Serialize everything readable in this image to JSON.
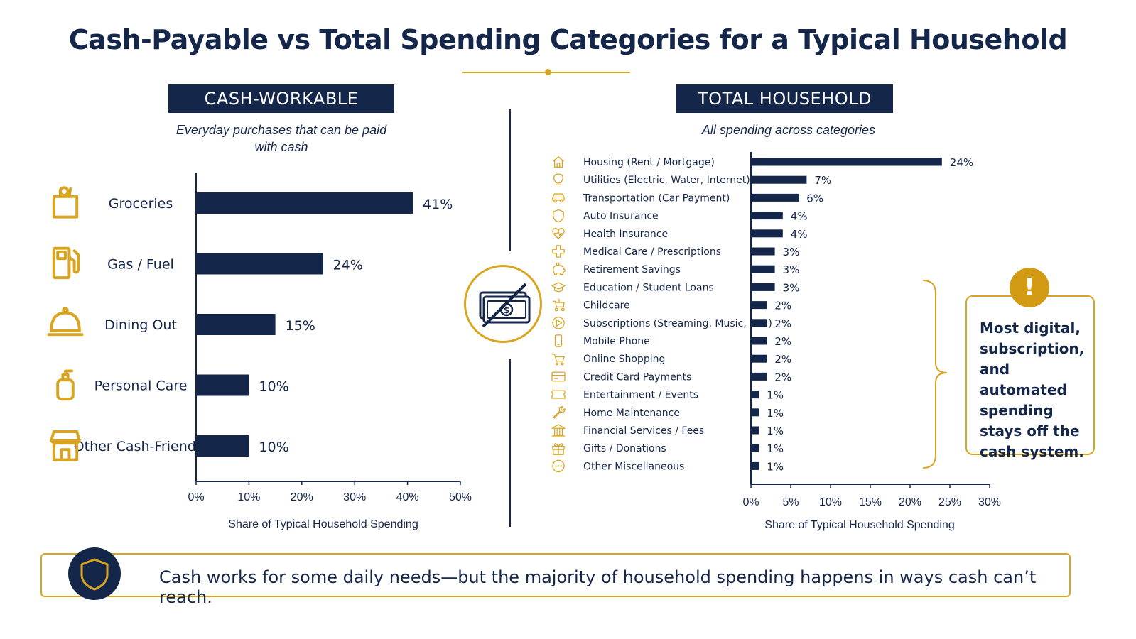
{
  "title": "Cash-Payable vs Total Spending Categories for a Typical Household",
  "left_panel": {
    "heading": "CASH-WORKABLE",
    "subtitle": "Everyday purchases that can be paid with cash"
  },
  "right_panel": {
    "heading": "TOTAL HOUSEHOLD",
    "subtitle": "All spending across categories"
  },
  "callout": {
    "text": "Most digital, subscription, and automated spending stays off the cash system.",
    "badge": "!"
  },
  "footer": {
    "text": "Cash works for some daily needs—but the majority of household spending happens in ways cash can’t reach."
  },
  "colors": {
    "navy": "#14264a",
    "gold": "#d9a520",
    "bar": "#14264a"
  },
  "chart_data": [
    {
      "type": "bar",
      "orientation": "horizontal",
      "categories": [
        "Groceries",
        "Gas / Fuel",
        "Dining Out",
        "Personal Care",
        "Other Cash-Friendly"
      ],
      "icons": [
        "grocery-bag-icon",
        "gas-pump-icon",
        "cloche-icon",
        "soap-bottle-icon",
        "storefront-icon"
      ],
      "values": [
        41,
        24,
        15,
        10,
        10
      ],
      "value_labels": [
        "41%",
        "24%",
        "15%",
        "10%",
        "10%"
      ],
      "xlabel": "Share of Typical Household Spending",
      "xlim": [
        0,
        50
      ],
      "xticks": [
        "0%",
        "10%",
        "20%",
        "30%",
        "40%",
        "50%"
      ],
      "grid": false
    },
    {
      "type": "bar",
      "orientation": "horizontal",
      "categories": [
        "Housing (Rent / Mortgage)",
        "Utilities (Electric, Water, Internet)",
        "Transportation (Car Payment)",
        "Auto Insurance",
        "Health Insurance",
        "Medical Care / Prescriptions",
        "Retirement Savings",
        "Education / Student Loans",
        "Childcare",
        "Subscriptions (Streaming, Music, etc.)",
        "Mobile Phone",
        "Online Shopping",
        "Credit Card Payments",
        "Entertainment / Events",
        "Home Maintenance",
        "Financial Services / Fees",
        "Gifts / Donations",
        "Other Miscellaneous"
      ],
      "icons": [
        "house-icon",
        "lightbulb-icon",
        "car-icon",
        "shield-icon",
        "heart-pulse-icon",
        "medical-cross-icon",
        "piggy-bank-icon",
        "graduation-cap-icon",
        "stroller-icon",
        "play-icon",
        "phone-icon",
        "cart-icon",
        "credit-card-icon",
        "ticket-icon",
        "wrench-icon",
        "bank-icon",
        "gift-icon",
        "ellipsis-icon"
      ],
      "values": [
        24,
        7,
        6,
        4,
        4,
        3,
        3,
        3,
        2,
        2,
        2,
        2,
        2,
        1,
        1,
        1,
        1,
        1
      ],
      "value_labels": [
        "24%",
        "7%",
        "6%",
        "4%",
        "4%",
        "3%",
        "3%",
        "3%",
        "2%",
        "2%",
        "2%",
        "2%",
        "2%",
        "1%",
        "1%",
        "1%",
        "1%",
        "1%"
      ],
      "xlabel": "Share of Typical Household Spending",
      "xlim": [
        0,
        30
      ],
      "xticks": [
        "0%",
        "5%",
        "10%",
        "15%",
        "20%",
        "25%",
        "30%"
      ],
      "grid": false
    }
  ]
}
